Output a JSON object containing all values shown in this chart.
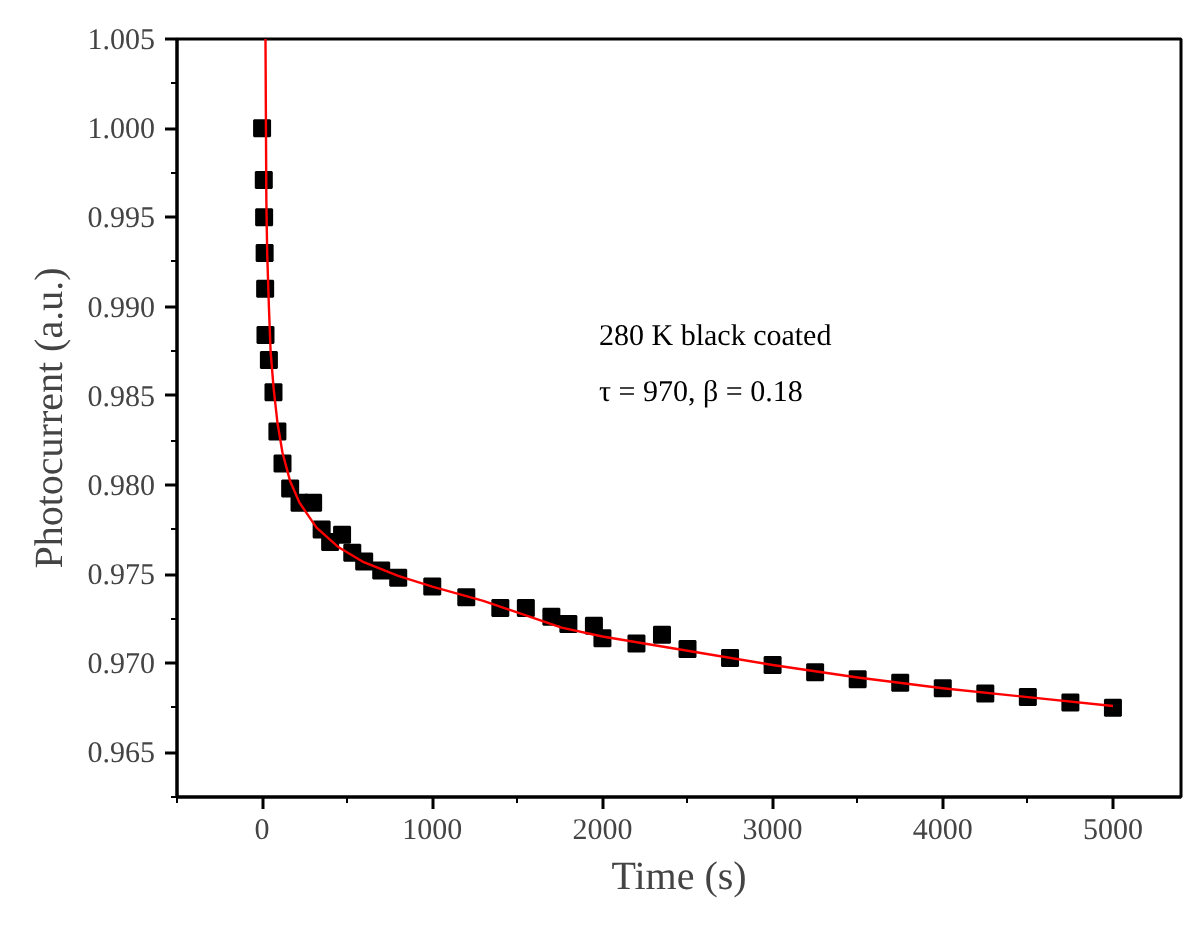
{
  "chart_data": {
    "type": "scatter",
    "xlabel": "Time (s)",
    "ylabel": "Photocurrent (a.u.)",
    "annotations": [
      "280 K black coated",
      "τ = 970, β = 0.18"
    ],
    "xlim": [
      -500,
      5400
    ],
    "ylim": [
      0.9625,
      1.005
    ],
    "xticks": [
      {
        "value": -500,
        "label": null
      },
      0,
      {
        "value": 500,
        "label": null
      },
      1000,
      {
        "value": 1500,
        "label": null
      },
      2000,
      {
        "value": 2500,
        "label": null
      },
      3000,
      {
        "value": 3500,
        "label": null
      },
      4000,
      {
        "value": 4500,
        "label": null
      },
      5000
    ],
    "yticks": [
      {
        "value": 0.9625,
        "label": null
      },
      0.965,
      {
        "value": 0.9675,
        "label": null
      },
      {
        "value": 0.97,
        "label": "0.970"
      },
      {
        "value": 0.9725,
        "label": null
      },
      0.975,
      {
        "value": 0.9775,
        "label": null
      },
      {
        "value": 0.98,
        "label": "0.980"
      },
      {
        "value": 0.9825,
        "label": null
      },
      0.985,
      {
        "value": 0.9875,
        "label": null
      },
      {
        "value": 0.99,
        "label": "0.990"
      },
      {
        "value": 0.9925,
        "label": null
      },
      0.995,
      {
        "value": 0.9975,
        "label": null
      },
      {
        "value": 1.0,
        "label": "1.000"
      },
      {
        "value": 1.0025,
        "label": null
      },
      1.005
    ],
    "grid": false,
    "series": [
      {
        "color": "#000000",
        "marker": "square",
        "x": [
          0,
          10,
          12,
          15,
          18,
          20,
          40,
          67,
          90,
          120,
          165,
          220,
          300,
          350,
          400,
          470,
          530,
          600,
          700,
          800,
          1000,
          1200,
          1400,
          1550,
          1700,
          1800,
          1950,
          2000,
          2200,
          2350,
          2500,
          2750,
          3000,
          3250,
          3500,
          3750,
          4000,
          4250,
          4500,
          4750,
          5000
        ],
        "values": [
          1.0,
          0.9971,
          0.995,
          0.993,
          0.991,
          0.9884,
          0.987,
          0.9852,
          0.983,
          0.9812,
          0.9798,
          0.979,
          0.979,
          0.9775,
          0.9768,
          0.9772,
          0.9762,
          0.9757,
          0.9752,
          0.9748,
          0.9743,
          0.9737,
          0.9731,
          0.9731,
          0.9726,
          0.9722,
          0.9721,
          0.9714,
          0.9711,
          0.9716,
          0.9708,
          0.9703,
          0.9699,
          0.9695,
          0.9691,
          0.9689,
          0.9686,
          0.9683,
          0.9681,
          0.9678,
          0.9675
        ]
      },
      {
        "type": "line",
        "color": "#ff0000",
        "line_style": "solid",
        "x": [
          20,
          25,
          30,
          40,
          50,
          67,
          90,
          120,
          165,
          220,
          320,
          450,
          590,
          800,
          1000,
          1300,
          1760,
          2000,
          2500,
          3000,
          3500,
          4000,
          4500,
          5000
        ],
        "values": [
          1.005,
          0.996,
          0.993,
          0.99,
          0.9875,
          0.9855,
          0.9835,
          0.9818,
          0.9802,
          0.979,
          0.9776,
          0.9765,
          0.9757,
          0.9749,
          0.9743,
          0.9735,
          0.972,
          0.9715,
          0.9707,
          0.9699,
          0.9692,
          0.9686,
          0.9681,
          0.9676
        ]
      }
    ]
  }
}
